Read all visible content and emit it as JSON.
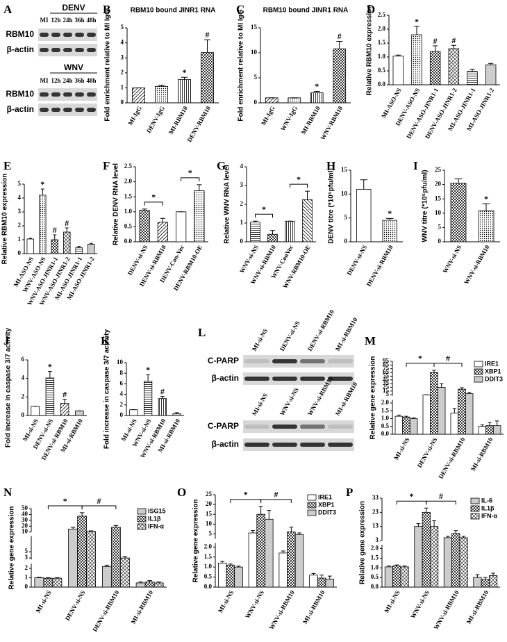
{
  "chart_data": [
    {
      "type": "bar",
      "panel": "B",
      "title": "RBM10 bound JINR1 RNA",
      "ylabel": "Fold enrichment relative to MI IgG",
      "categories": [
        "MI-IgG",
        "DENV-IgG",
        "MI-RBM10",
        "DENV-RBM10"
      ],
      "values": [
        1,
        1.1,
        1.55,
        3.35
      ],
      "errors": [
        0,
        0.08,
        0.15,
        0.85
      ],
      "marks": [
        null,
        null,
        "*",
        "#"
      ],
      "patterns": [
        "diag",
        "dots",
        "vline",
        "check"
      ],
      "ylim": [
        0,
        5
      ],
      "yticks": [
        0,
        1,
        2,
        3,
        4,
        5
      ]
    },
    {
      "type": "bar",
      "panel": "C",
      "title": "RBM10 bound JINR1 RNA",
      "ylabel": "Fold enrichment relative to MI IgG",
      "categories": [
        "MI-IgG",
        "WNV-IgG",
        "MI-RBM10",
        "WNV-RBM10"
      ],
      "values": [
        1,
        1,
        2,
        10.8
      ],
      "errors": [
        0,
        0,
        0.3,
        1.5
      ],
      "marks": [
        null,
        null,
        "*",
        "#"
      ],
      "patterns": [
        "diag",
        "dots",
        "vline",
        "check"
      ],
      "ylim": [
        0,
        15
      ],
      "yticks": [
        0,
        5,
        10,
        15
      ]
    },
    {
      "type": "bar",
      "panel": "D",
      "ylabel": "Relative RBM10 expression",
      "categories": [
        "MI-ASO-NS",
        "DENV-ASO-NS",
        "DENV-ASO-JINR1-1",
        "DENV-ASO-JINR1-2",
        "MI-ASO-JINR1-1",
        "MI-ASO-JINR1-2"
      ],
      "values": [
        1.03,
        1.8,
        1.2,
        1.3,
        0.48,
        0.72
      ],
      "errors": [
        0.04,
        0.3,
        0.2,
        0.12,
        0.08,
        0.05
      ],
      "marks": [
        null,
        "*",
        "#",
        "#",
        null,
        null
      ],
      "patterns": [
        "white",
        "dots",
        "check",
        "cross",
        "hline",
        "gray"
      ],
      "ylim": [
        0,
        2.5
      ],
      "yticks": [
        {
          "value": 0,
          "label": "0.0"
        },
        0.5,
        {
          "value": 1,
          "label": "1.0"
        },
        1.5,
        {
          "value": 2,
          "label": "2.0"
        },
        2.5
      ]
    },
    {
      "type": "bar",
      "panel": "E",
      "ylabel": "Relative RBM10 expression",
      "categories": [
        "MI-ASO-NS",
        "WNV-ASO-NS",
        "WNV-ASO-JINR1-1",
        "WNV-ASO-JINR1-2",
        "MI-ASO-JINR1-1",
        "MI-ASO-JINR1-2"
      ],
      "values": [
        1.05,
        4.2,
        1.0,
        1.55,
        0.42,
        0.68
      ],
      "errors": [
        0.05,
        0.45,
        0.35,
        0.3,
        0.1,
        0.06
      ],
      "marks": [
        null,
        "*",
        "#",
        "#",
        null,
        null
      ],
      "patterns": [
        "white",
        "dots",
        "check",
        "cross",
        "hline",
        "gray"
      ],
      "ylim": [
        0,
        5
      ],
      "yticks": [
        0,
        1,
        2,
        3,
        4,
        5
      ]
    },
    {
      "type": "bar",
      "panel": "F",
      "ylabel": "Relative DENV RNA level",
      "categories": [
        "DENV-si-NS",
        "DENV-si-RBM10",
        "DENV-Con-Vec",
        "DENV-RBM10-OE"
      ],
      "values": [
        1.05,
        0.65,
        1.0,
        1.7
      ],
      "errors": [
        0.04,
        0.13,
        0,
        0.2
      ],
      "patterns": [
        "check",
        "diag",
        "white",
        "dots"
      ],
      "brackets": [
        {
          "label": "*",
          "from": 0,
          "to": 1
        },
        {
          "label": "*",
          "from": 2,
          "to": 3
        }
      ],
      "ylim": [
        0,
        2.5
      ],
      "yticks": [
        {
          "value": 0,
          "label": "0.0"
        },
        0.5,
        {
          "value": 1,
          "label": "1.0"
        },
        1.5,
        {
          "value": 2,
          "label": "2.0"
        },
        2.5
      ]
    },
    {
      "type": "bar",
      "panel": "G",
      "ylabel": "Relative WNV RNA level",
      "categories": [
        "WNV-si-NS",
        "WNV-si-RBM10",
        "WNV-ConVec",
        "WNV-RBM10-OE"
      ],
      "values": [
        1.05,
        0.4,
        1.1,
        2.25
      ],
      "errors": [
        0.05,
        0.2,
        0,
        0.45
      ],
      "patterns": [
        "hline",
        "check",
        "vline",
        "rdiag"
      ],
      "brackets": [
        {
          "label": "*",
          "from": 0,
          "to": 1
        },
        {
          "label": "*",
          "from": 2,
          "to": 3
        }
      ],
      "ylim": [
        0,
        4
      ],
      "yticks": [
        0,
        1,
        2,
        3,
        4
      ]
    },
    {
      "type": "bar",
      "panel": "H",
      "ylabel": "DENV titre (*10⁵pfu/ml)",
      "categories": [
        "DENV-si-NS",
        "DENV-si-RBM10"
      ],
      "values": [
        11,
        4.5
      ],
      "errors": [
        2,
        0.4
      ],
      "marks": [
        null,
        "*"
      ],
      "patterns": [
        "white",
        "dots"
      ],
      "ylim": [
        0,
        15
      ],
      "yticks": [
        0,
        5,
        10,
        15
      ]
    },
    {
      "type": "bar",
      "panel": "I",
      "ylabel": "WNV titre (*10⁵pfu/ml)",
      "categories": [
        "WNV-si-NS",
        "WNV-si-RBM10"
      ],
      "values": [
        20.5,
        10.8
      ],
      "errors": [
        1.5,
        2.5
      ],
      "marks": [
        null,
        "*"
      ],
      "patterns": [
        "check",
        "dots"
      ],
      "ylim": [
        0,
        25
      ],
      "yticks": [
        0,
        5,
        10,
        15,
        20,
        25
      ]
    },
    {
      "type": "bar",
      "panel": "J",
      "ylabel": "Fold increase in caspase 3/7 activity",
      "categories": [
        "MI-si-NS",
        "DENV-si-NS",
        "DENV-si-RBM10",
        "MI-si-RBM10"
      ],
      "values": [
        1,
        4.05,
        1.3,
        0.5
      ],
      "errors": [
        0,
        0.7,
        0.45,
        0
      ],
      "marks": [
        null,
        "*",
        "#",
        null
      ],
      "patterns": [
        "white",
        "hline",
        "diag",
        "gray"
      ],
      "ylim": [
        0,
        6
      ],
      "yticks": [
        0,
        2,
        4,
        6
      ]
    },
    {
      "type": "bar",
      "panel": "K",
      "ylabel": "Fold increase in caspase 3/7 activity",
      "categories": [
        "MI-si-NS",
        "WNV-si-NS",
        "WNV-si-RBM10",
        "MI-si-RBM10"
      ],
      "values": [
        1.1,
        6.5,
        3.2,
        0.35
      ],
      "errors": [
        0,
        1.2,
        0.4,
        0.2
      ],
      "marks": [
        null,
        "*",
        "#",
        null
      ],
      "patterns": [
        "white",
        "hline",
        "vline",
        "gray"
      ],
      "ylim": [
        0,
        10
      ],
      "yticks": [
        0,
        2,
        4,
        6,
        8,
        10
      ]
    },
    {
      "type": "grouped-bar",
      "panel": "M",
      "ylabel": "Relative gene expression",
      "categories": [
        "MI-si-NS",
        "DENV-si-NS",
        "DENV-si-RBM10",
        "MI-si-RBM10"
      ],
      "series": [
        {
          "name": "IRE1",
          "pattern": "white",
          "values": [
            1.15,
            4.9,
            1.35,
            0.5
          ],
          "errors": [
            0.08,
            0.1,
            0.3,
            0.1
          ]
        },
        {
          "name": "XBP1",
          "pattern": "check",
          "values": [
            1.1,
            65,
            20,
            0.55
          ],
          "errors": [
            0.05,
            6,
            4,
            0.2
          ]
        },
        {
          "name": "DDIT3",
          "pattern": "gray",
          "values": [
            1.0,
            25,
            8,
            0.55
          ],
          "errors": [
            0.05,
            10,
            3,
            0.3
          ]
        }
      ],
      "brackets": [
        {
          "label": "*",
          "from": 0,
          "to": 1
        },
        {
          "label": "#",
          "from": 1,
          "to": 2
        }
      ],
      "segments": [
        {
          "ylim": [
            0,
            2.2
          ],
          "yticks": [
            {
              "value": 0,
              "label": "0.0"
            },
            0.5,
            {
              "value": 1,
              "label": "1.0"
            },
            1.5,
            {
              "value": 2,
              "label": "2.0"
            }
          ]
        },
        {
          "ylim": [
            2.5,
            95
          ],
          "yticks": [
            5,
            15,
            25,
            35,
            45,
            55,
            65,
            75,
            85,
            95
          ]
        }
      ]
    },
    {
      "type": "grouped-bar",
      "panel": "N",
      "ylabel": "Relative gene expression",
      "categories": [
        "MI-si-NS",
        "DENV-si-NS",
        "DENV-si-RBM10",
        "MI-si-RBM10"
      ],
      "series": [
        {
          "name": "ISG15",
          "pattern": "gray",
          "values": [
            1.0,
            15,
            2.2,
            0.45
          ],
          "errors": [
            0.05,
            3,
            0.15,
            0.1
          ]
        },
        {
          "name": "IL1β",
          "pattern": "check",
          "values": [
            0.95,
            37,
            18,
            0.55
          ],
          "errors": [
            0.05,
            6,
            3,
            0.15
          ]
        },
        {
          "name": "IFN-α",
          "pattern": "cross",
          "values": [
            0.95,
            11,
            3.0,
            0.45
          ],
          "errors": [
            0.05,
            1,
            0.5,
            0.1
          ]
        }
      ],
      "brackets": [
        {
          "label": "*",
          "from": 0,
          "to": 1
        },
        {
          "label": "#",
          "from": 1,
          "to": 2
        }
      ],
      "segments": [
        {
          "ylim": [
            0,
            2.5
          ],
          "yticks": [
            0,
            1,
            2
          ]
        },
        {
          "ylim": [
            2.5,
            10
          ],
          "yticks": [
            3,
            5
          ]
        },
        {
          "ylim": [
            10,
            50
          ],
          "yticks": [
            10,
            20,
            30,
            40,
            50
          ]
        }
      ]
    },
    {
      "type": "grouped-bar",
      "panel": "O",
      "ylabel": "Relative gene expression",
      "categories": [
        "MI-si-NS",
        "WNV-si-NS",
        "WNV-si-RBM10",
        "MI-si-RBM10"
      ],
      "series": [
        {
          "name": "IRE1",
          "pattern": "white",
          "values": [
            1.2,
            5.5,
            1.7,
            0.6
          ],
          "errors": [
            0.08,
            1.2,
            0.1,
            0.08
          ]
        },
        {
          "name": "XBP1",
          "pattern": "check",
          "values": [
            1.1,
            15,
            6,
            0.45
          ],
          "errors": [
            0.05,
            4,
            2.5,
            0.15
          ]
        },
        {
          "name": "DDIT3",
          "pattern": "gray",
          "values": [
            1.0,
            12.5,
            4.7,
            0.4
          ],
          "errors": [
            0.05,
            4.5,
            0.8,
            0.15
          ]
        }
      ],
      "brackets": [
        {
          "label": "*",
          "from": 0,
          "to": 1
        },
        {
          "label": "#",
          "from": 1,
          "to": 2
        }
      ],
      "segments": [
        {
          "ylim": [
            0,
            2.2
          ],
          "yticks": [
            {
              "value": 0,
              "label": "0.0"
            },
            0.5,
            {
              "value": 1,
              "label": "1.0"
            },
            1.5,
            {
              "value": 2,
              "label": "2.0"
            }
          ]
        },
        {
          "ylim": [
            2.5,
            25
          ],
          "yticks": [
            5,
            10,
            15,
            20,
            25
          ]
        }
      ]
    },
    {
      "type": "grouped-bar",
      "panel": "P",
      "ylabel": "Relative gene expression",
      "categories": [
        "MI-si-NS",
        "WNV-si-NS",
        "WNV-si-RBM10",
        "MI-si-RBM10"
      ],
      "series": [
        {
          "name": "IL-6",
          "pattern": "gray",
          "values": [
            1.05,
            13,
            5,
            0.5
          ],
          "errors": [
            0.05,
            2,
            1,
            0.15
          ]
        },
        {
          "name": "IL1β",
          "pattern": "check",
          "values": [
            1.1,
            23,
            8,
            0.4
          ],
          "errors": [
            0.05,
            3,
            2,
            0.1
          ]
        },
        {
          "name": "IFN-α",
          "pattern": "cross",
          "values": [
            1.05,
            13,
            5,
            0.6
          ],
          "errors": [
            0.05,
            4,
            1,
            0.12
          ]
        }
      ],
      "brackets": [
        {
          "label": "*",
          "from": 0,
          "to": 1
        },
        {
          "label": "#",
          "from": 1,
          "to": 2
        }
      ],
      "segments": [
        {
          "ylim": [
            0,
            2.2
          ],
          "yticks": [
            {
              "value": 0,
              "label": "0.0"
            },
            0.5,
            {
              "value": 1,
              "label": "1.0"
            },
            1.5,
            {
              "value": 2,
              "label": "2.0"
            }
          ]
        },
        {
          "ylim": [
            3,
            33
          ],
          "yticks": [
            3,
            13,
            23,
            33
          ]
        }
      ]
    }
  ],
  "blots": [
    {
      "panel": "A",
      "groups": [
        {
          "header": "DENV",
          "lanes": [
            "MI",
            "12h",
            "24h",
            "36h",
            "48h"
          ],
          "rows": [
            "RBM10",
            "β-actin"
          ]
        },
        {
          "header": "WNV",
          "lanes": [
            "MI",
            "12h",
            "24h",
            "36h",
            "48h"
          ],
          "rows": [
            "RBM10",
            "β-actin"
          ]
        }
      ]
    },
    {
      "panel": "L",
      "groups": [
        {
          "lanes": [
            "MI-si-NS",
            "DENV-si-NS",
            "DENV-si-RBM10",
            "MI-si-RBM10"
          ],
          "rows": [
            "C-PARP",
            "β-actin"
          ]
        },
        {
          "lanes": [
            "MI-si-NS",
            "WNV-si-NS",
            "WNV-si-RBM10",
            "MI-si-RBM10"
          ],
          "rows": [
            "C-PARP",
            "β-actin"
          ]
        }
      ]
    }
  ]
}
